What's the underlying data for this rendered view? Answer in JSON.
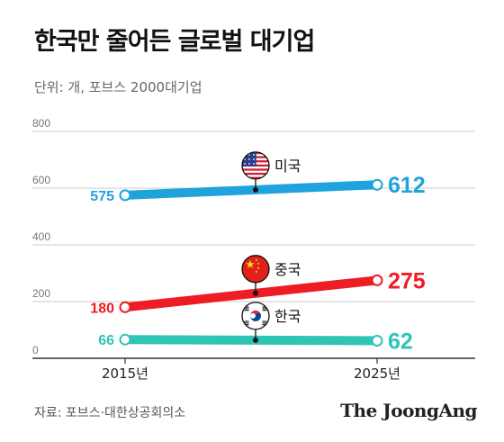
{
  "title": "한국만 줄어든 글로벌 대기업",
  "subtitle": "단위: 개, 포브스 2000대기업",
  "source": "자료: 포브스·대한상공회의소",
  "brand": "The JoongAng",
  "chart_data": {
    "type": "line",
    "x": [
      "2015년",
      "2025년"
    ],
    "ylim": [
      0,
      800
    ],
    "yticks": [
      0,
      200,
      400,
      600,
      800
    ],
    "grid": true,
    "legend": "inline labels with flag icons",
    "series": [
      {
        "name": "미국",
        "values": [
          575,
          612
        ],
        "color": "#1ea3dc",
        "flag": "us-flag-icon"
      },
      {
        "name": "중국",
        "values": [
          180,
          275
        ],
        "color": "#ee1c25",
        "flag": "china-flag-icon"
      },
      {
        "name": "한국",
        "values": [
          66,
          62
        ],
        "color": "#2ec4b6",
        "flag": "korea-flag-icon"
      }
    ]
  }
}
